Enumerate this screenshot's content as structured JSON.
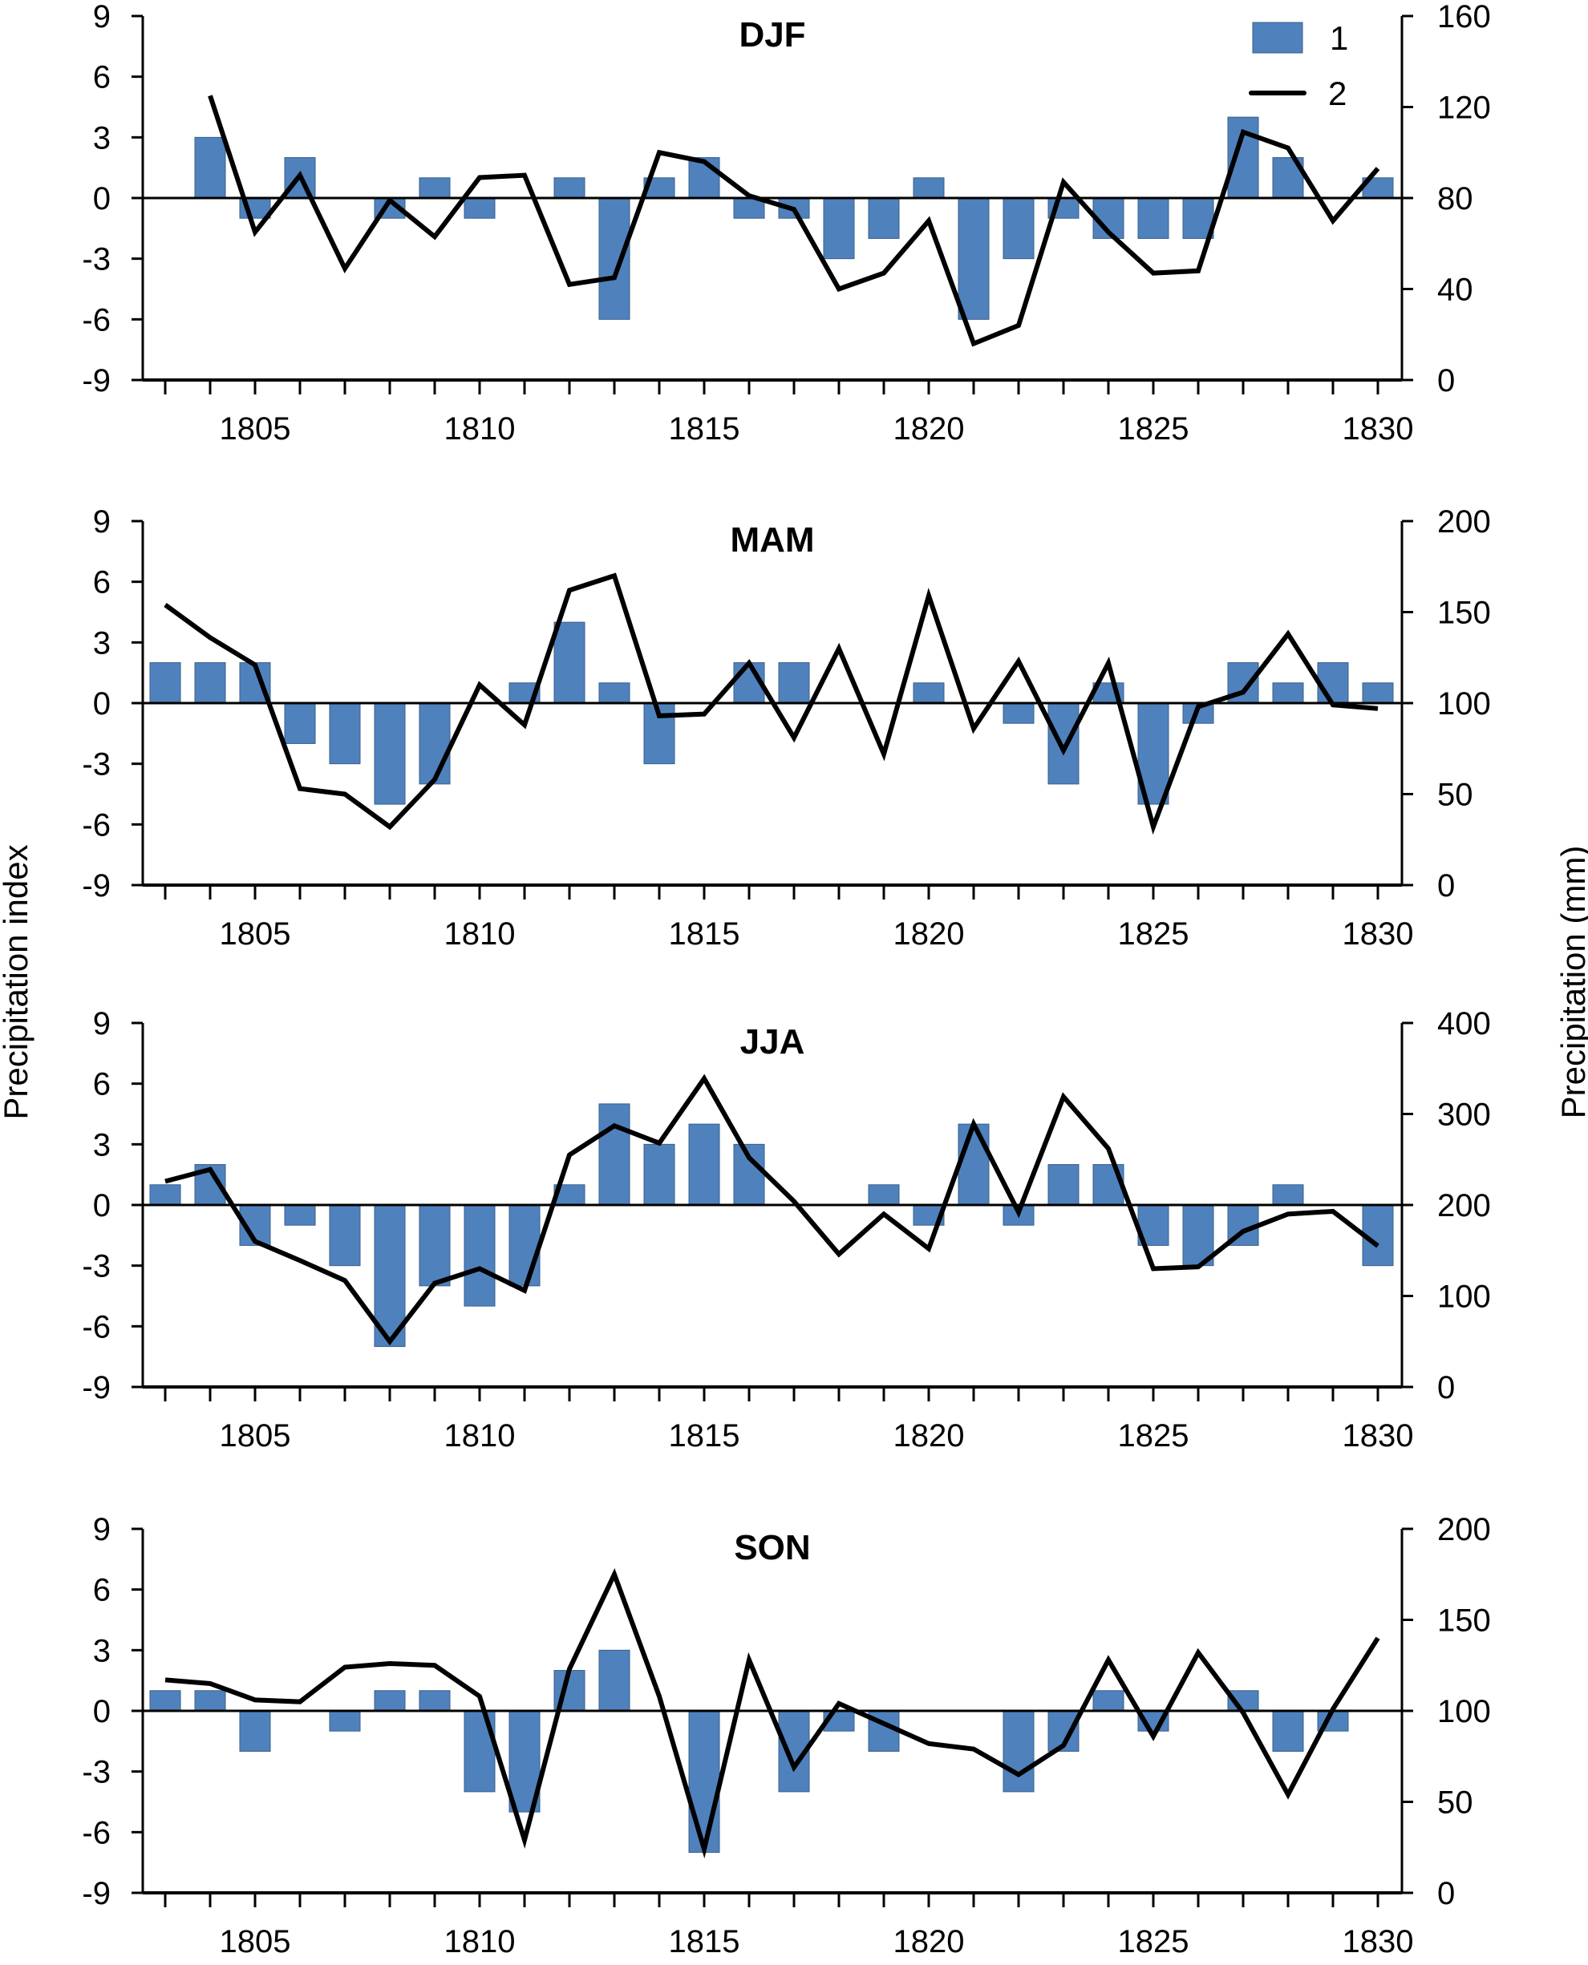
{
  "chart_data": {
    "type": "bar+line",
    "ylabel_left": "Precipitation index",
    "ylabel_right": "Precipitation (mm)",
    "legend": {
      "placement": "top-right of first panel",
      "entries": [
        {
          "label": "1",
          "kind": "bar",
          "color": "#4f81bd"
        },
        {
          "label": "2",
          "kind": "line",
          "color": "#000000"
        }
      ]
    },
    "x": [
      1803,
      1804,
      1805,
      1806,
      1807,
      1808,
      1809,
      1810,
      1811,
      1812,
      1813,
      1814,
      1815,
      1816,
      1817,
      1818,
      1819,
      1820,
      1821,
      1822,
      1823,
      1824,
      1825,
      1826,
      1827,
      1828,
      1829,
      1830
    ],
    "x_tick_labels": [
      "1805",
      "1810",
      "1815",
      "1820",
      "1825",
      "1830"
    ],
    "x_tick_label_values": [
      1805,
      1810,
      1815,
      1820,
      1825,
      1830
    ],
    "left_ylim": [
      -9,
      9
    ],
    "left_ticks": [
      "9",
      "6",
      "3",
      "0",
      "-3",
      "-6",
      "-9"
    ],
    "left_tick_values": [
      9,
      6,
      3,
      0,
      -3,
      -6,
      -9
    ],
    "bar_color": "#4f81bd",
    "line_color": "#000000",
    "panels": [
      {
        "title": "DJF",
        "right_ylim": [
          0,
          160
        ],
        "right_ticks": [
          "160",
          "120",
          "80",
          "40",
          "0"
        ],
        "right_tick_values": [
          160,
          120,
          80,
          40,
          0
        ],
        "series": [
          {
            "name": "1",
            "type": "bar",
            "axis": "left",
            "values": [
              null,
              3,
              -1,
              2,
              0,
              -1,
              1,
              -1,
              0,
              1,
              -6,
              1,
              2,
              -1,
              -1,
              -3,
              -2,
              1,
              -6,
              -3,
              -1,
              -2,
              -2,
              -2,
              4,
              2,
              0,
              1
            ]
          },
          {
            "name": "2",
            "type": "line",
            "axis": "right",
            "values": [
              null,
              125,
              65,
              90,
              49,
              79,
              63,
              89,
              90,
              42,
              45,
              100,
              96,
              81,
              75,
              40,
              47,
              70,
              16,
              24,
              87,
              65,
              47,
              48,
              109,
              102,
              70,
              93
            ]
          }
        ]
      },
      {
        "title": "MAM",
        "right_ylim": [
          0,
          200
        ],
        "right_ticks": [
          "200",
          "150",
          "100",
          "50",
          "0"
        ],
        "right_tick_values": [
          200,
          150,
          100,
          50,
          0
        ],
        "series": [
          {
            "name": "1",
            "type": "bar",
            "axis": "left",
            "values": [
              2,
              2,
              2,
              -2,
              -3,
              -5,
              -4,
              0,
              1,
              4,
              1,
              -3,
              0,
              2,
              2,
              0,
              0,
              1,
              0,
              -1,
              -4,
              1,
              -5,
              -1,
              2,
              1,
              2,
              1
            ]
          },
          {
            "name": "2",
            "type": "line",
            "axis": "right",
            "values": [
              154,
              136,
              121,
              53,
              50,
              32,
              58,
              110,
              88,
              162,
              170,
              93,
              94,
              122,
              81,
              130,
              72,
              159,
              86,
              123,
              74,
              122,
              32,
              98,
              106,
              138,
              99,
              97
            ]
          }
        ]
      },
      {
        "title": "JJA",
        "right_ylim": [
          0,
          400
        ],
        "right_ticks": [
          "400",
          "300",
          "200",
          "100",
          "0"
        ],
        "right_tick_values": [
          400,
          300,
          200,
          100,
          0
        ],
        "series": [
          {
            "name": "1",
            "type": "bar",
            "axis": "left",
            "values": [
              1,
              2,
              -2,
              -1,
              -3,
              -7,
              -4,
              -5,
              -4,
              1,
              5,
              3,
              4,
              3,
              0,
              0,
              1,
              -1,
              4,
              -1,
              2,
              2,
              -2,
              -3,
              -2,
              1,
              0,
              -3
            ]
          },
          {
            "name": "2",
            "type": "line",
            "axis": "right",
            "values": [
              226,
              239,
              160,
              139,
              117,
              50,
              114,
              130,
              106,
              255,
              287,
              268,
              339,
              252,
              204,
              146,
              190,
              152,
              289,
              192,
              319,
              262,
              130,
              132,
              171,
              190,
              193,
              155
            ]
          }
        ]
      },
      {
        "title": "SON",
        "right_ylim": [
          0,
          200
        ],
        "right_ticks": [
          "200",
          "150",
          "100",
          "50",
          "0"
        ],
        "right_tick_values": [
          200,
          150,
          100,
          50,
          0
        ],
        "series": [
          {
            "name": "1",
            "type": "bar",
            "axis": "left",
            "values": [
              1,
              1,
              -2,
              0,
              -1,
              1,
              1,
              -4,
              -5,
              2,
              3,
              0,
              -7,
              0,
              -4,
              -1,
              -2,
              0,
              0,
              -4,
              -2,
              1,
              -1,
              0,
              1,
              -2,
              -1,
              0
            ]
          },
          {
            "name": "2",
            "type": "line",
            "axis": "right",
            "values": [
              117,
              115,
              106,
              105,
              124,
              126,
              125,
              108,
              29,
              123,
              175,
              108,
              24,
              128,
              69,
              104,
              93,
              82,
              79,
              65,
              81,
              128,
              86,
              132,
              99,
              54,
              101,
              140
            ]
          }
        ]
      }
    ]
  }
}
